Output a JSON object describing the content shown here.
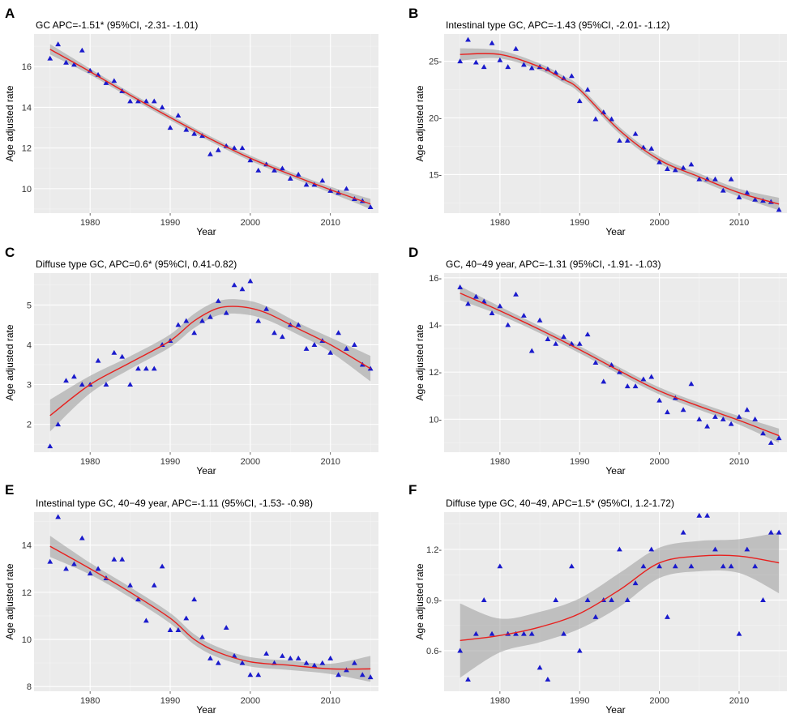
{
  "colors": {
    "panel_bg": "#ebebeb",
    "grid_major": "#ffffff",
    "grid_minor": "#f4f4f4",
    "point": "#1a1acc",
    "fit_line": "#e8201e",
    "ci_band": "#9a9a9a"
  },
  "chart_data": [
    {
      "letter": "A",
      "type": "scatter",
      "title": "GC APC=-1.51* (95%CI, -2.31- -1.01)",
      "xlabel": "Year",
      "ylabel": "Age adjusted rate",
      "xlim": [
        1973,
        2016
      ],
      "ylim": [
        8.8,
        17.6
      ],
      "xticks": [
        1980,
        1990,
        2000,
        2010
      ],
      "yticks": [
        10,
        12,
        14,
        16
      ],
      "ytick_labels": [
        "10",
        "12",
        "14",
        "16"
      ],
      "points": {
        "x": [
          1975,
          1976,
          1977,
          1978,
          1979,
          1980,
          1981,
          1982,
          1983,
          1984,
          1985,
          1986,
          1987,
          1988,
          1989,
          1990,
          1991,
          1992,
          1993,
          1994,
          1995,
          1996,
          1997,
          1998,
          1999,
          2000,
          2001,
          2002,
          2003,
          2004,
          2005,
          2006,
          2007,
          2008,
          2009,
          2010,
          2011,
          2012,
          2013,
          2014,
          2015
        ],
        "y": [
          16.4,
          17.1,
          16.2,
          16.1,
          16.8,
          15.8,
          15.6,
          15.2,
          15.3,
          14.8,
          14.3,
          14.3,
          14.3,
          14.3,
          14.0,
          13.0,
          13.6,
          12.9,
          12.7,
          12.6,
          11.7,
          11.9,
          12.1,
          12.0,
          12.0,
          11.4,
          10.9,
          11.2,
          10.9,
          11.0,
          10.5,
          10.7,
          10.2,
          10.2,
          10.4,
          9.9,
          9.8,
          10.0,
          9.5,
          9.4,
          9.1
        ]
      },
      "fit": {
        "x": [
          1975,
          1980,
          1985,
          1990,
          1995,
          2000,
          2005,
          2010,
          2015
        ],
        "y": [
          16.85,
          15.75,
          14.6,
          13.5,
          12.45,
          11.5,
          10.7,
          9.95,
          9.25
        ],
        "se": [
          0.25,
          0.15,
          0.13,
          0.13,
          0.13,
          0.13,
          0.13,
          0.15,
          0.25
        ]
      }
    },
    {
      "letter": "B",
      "type": "scatter",
      "title": "Intestinal type GC, APC=-1.43 (95%CI, -2.01- -1.12)",
      "xlabel": "Year",
      "ylabel": "Age adjusted rate",
      "xlim": [
        1973,
        2016
      ],
      "ylim": [
        11.6,
        27.4
      ],
      "xticks": [
        1980,
        1990,
        2000,
        2010
      ],
      "yticks": [
        15,
        20,
        25
      ],
      "ytick_labels": [
        "15-",
        "20-",
        "25-"
      ],
      "points": {
        "x": [
          1975,
          1976,
          1977,
          1978,
          1979,
          1980,
          1981,
          1982,
          1983,
          1984,
          1985,
          1986,
          1987,
          1988,
          1989,
          1990,
          1991,
          1992,
          1993,
          1994,
          1995,
          1996,
          1997,
          1998,
          1999,
          2000,
          2001,
          2002,
          2003,
          2004,
          2005,
          2006,
          2007,
          2008,
          2009,
          2010,
          2011,
          2012,
          2013,
          2014,
          2015
        ],
        "y": [
          25.0,
          26.9,
          24.9,
          24.5,
          26.6,
          25.1,
          24.5,
          26.1,
          24.7,
          24.4,
          24.5,
          24.3,
          24.0,
          23.5,
          23.7,
          21.5,
          22.5,
          19.9,
          20.5,
          19.9,
          18.0,
          18.0,
          18.6,
          17.4,
          17.3,
          16.1,
          15.5,
          15.4,
          15.6,
          15.9,
          14.6,
          14.6,
          14.6,
          13.6,
          14.6,
          13.0,
          13.4,
          12.8,
          12.7,
          12.6,
          11.9
        ]
      },
      "fit": {
        "x": [
          1975,
          1980,
          1985,
          1988,
          1990,
          1995,
          2000,
          2005,
          2010,
          2015
        ],
        "y": [
          25.6,
          25.6,
          24.5,
          23.4,
          22.5,
          18.9,
          16.3,
          14.8,
          13.4,
          12.4
        ],
        "se": [
          0.55,
          0.35,
          0.3,
          0.3,
          0.3,
          0.3,
          0.3,
          0.3,
          0.35,
          0.55
        ]
      }
    },
    {
      "letter": "C",
      "type": "scatter",
      "title": "Diffuse type GC, APC=0.6* (95%CI, 0.41-0.82)",
      "xlabel": "Year",
      "ylabel": "Age adjusted rate",
      "xlim": [
        1973,
        2016
      ],
      "ylim": [
        1.3,
        5.8
      ],
      "xticks": [
        1980,
        1990,
        2000,
        2010
      ],
      "yticks": [
        2,
        3,
        4,
        5
      ],
      "ytick_labels": [
        "2",
        "3",
        "4",
        "5"
      ],
      "points": {
        "x": [
          1975,
          1976,
          1977,
          1978,
          1979,
          1980,
          1981,
          1982,
          1983,
          1984,
          1985,
          1986,
          1987,
          1988,
          1989,
          1990,
          1991,
          1992,
          1993,
          1994,
          1995,
          1996,
          1997,
          1998,
          1999,
          2000,
          2001,
          2002,
          2003,
          2004,
          2005,
          2006,
          2007,
          2008,
          2009,
          2010,
          2011,
          2012,
          2013,
          2014,
          2015
        ],
        "y": [
          1.45,
          2.0,
          3.1,
          3.2,
          3.0,
          3.0,
          3.6,
          3.0,
          3.8,
          3.7,
          3.0,
          3.4,
          3.4,
          3.4,
          4.0,
          4.1,
          4.5,
          4.6,
          4.3,
          4.6,
          4.7,
          5.1,
          4.8,
          5.5,
          5.4,
          5.6,
          4.6,
          4.9,
          4.3,
          4.2,
          4.5,
          4.5,
          3.9,
          4.0,
          4.1,
          3.8,
          4.3,
          3.9,
          4.0,
          3.5,
          3.4
        ]
      },
      "fit": {
        "x": [
          1975,
          1980,
          1985,
          1990,
          1993,
          1996,
          1999,
          2002,
          2006,
          2010,
          2015
        ],
        "y": [
          2.22,
          3.0,
          3.55,
          4.1,
          4.6,
          4.92,
          4.95,
          4.8,
          4.4,
          4.0,
          3.4
        ],
        "se": [
          0.4,
          0.22,
          0.16,
          0.16,
          0.18,
          0.18,
          0.18,
          0.17,
          0.15,
          0.18,
          0.32
        ]
      }
    },
    {
      "letter": "D",
      "type": "scatter",
      "title": "GC, 40−49 year, APC=-1.31 (95%CI, -1.91- -1.03)",
      "xlabel": "Year",
      "ylabel": "Age adjusted rate",
      "xlim": [
        1973,
        2016
      ],
      "ylim": [
        8.6,
        16.2
      ],
      "xticks": [
        1980,
        1990,
        2000,
        2010
      ],
      "yticks": [
        10,
        12,
        14,
        16
      ],
      "ytick_labels": [
        "10-",
        "12-",
        "14-",
        "16-"
      ],
      "points": {
        "x": [
          1975,
          1976,
          1977,
          1978,
          1979,
          1980,
          1981,
          1982,
          1983,
          1984,
          1985,
          1986,
          1987,
          1988,
          1989,
          1990,
          1991,
          1992,
          1993,
          1994,
          1995,
          1996,
          1997,
          1998,
          1999,
          2000,
          2001,
          2002,
          2003,
          2004,
          2005,
          2006,
          2007,
          2008,
          2009,
          2010,
          2011,
          2012,
          2013,
          2014,
          2015
        ],
        "y": [
          15.6,
          14.9,
          15.2,
          15.0,
          14.5,
          14.8,
          14.0,
          15.3,
          14.4,
          12.9,
          14.2,
          13.4,
          13.2,
          13.5,
          13.2,
          13.2,
          13.6,
          12.4,
          11.6,
          12.3,
          12.0,
          11.4,
          11.4,
          11.7,
          11.8,
          10.8,
          10.3,
          10.9,
          10.4,
          11.5,
          10.0,
          9.7,
          10.1,
          10.0,
          9.8,
          10.1,
          10.4,
          10.0,
          9.4,
          9.0,
          9.2
        ]
      },
      "fit": {
        "x": [
          1975,
          1980,
          1985,
          1990,
          1995,
          2000,
          2005,
          2010,
          2015
        ],
        "y": [
          15.35,
          14.6,
          13.8,
          12.95,
          12.05,
          11.2,
          10.55,
          9.95,
          9.3
        ],
        "se": [
          0.3,
          0.18,
          0.15,
          0.15,
          0.15,
          0.15,
          0.15,
          0.18,
          0.3
        ]
      }
    },
    {
      "letter": "E",
      "type": "scatter",
      "title": "Intestinal type GC, 40−49 year, APC=-1.11 (95%CI, -1.53- -0.98)",
      "xlabel": "Year",
      "ylabel": "Age adjusted rate",
      "xlim": [
        1973,
        2016
      ],
      "ylim": [
        7.8,
        15.4
      ],
      "xticks": [
        1980,
        1990,
        2000,
        2010
      ],
      "yticks": [
        8,
        10,
        12,
        14
      ],
      "ytick_labels": [
        "8",
        "10",
        "12",
        "14"
      ],
      "points": {
        "x": [
          1975,
          1976,
          1977,
          1978,
          1979,
          1980,
          1981,
          1982,
          1983,
          1984,
          1985,
          1986,
          1987,
          1988,
          1989,
          1990,
          1991,
          1992,
          1993,
          1994,
          1995,
          1996,
          1997,
          1998,
          1999,
          2000,
          2001,
          2002,
          2003,
          2004,
          2005,
          2006,
          2007,
          2008,
          2009,
          2010,
          2011,
          2012,
          2013,
          2014,
          2015
        ],
        "y": [
          13.3,
          15.2,
          13.0,
          13.2,
          14.3,
          12.8,
          13.0,
          12.6,
          13.4,
          13.4,
          12.3,
          11.7,
          10.8,
          12.3,
          13.1,
          10.4,
          10.4,
          10.9,
          11.7,
          10.1,
          9.2,
          9.0,
          10.5,
          9.3,
          9.0,
          8.5,
          8.5,
          9.4,
          9.0,
          9.3,
          9.2,
          9.2,
          9.0,
          8.9,
          9.0,
          9.2,
          8.5,
          8.7,
          9.0,
          8.5,
          8.4
        ]
      },
      "fit": {
        "x": [
          1975,
          1980,
          1985,
          1990,
          1993,
          1996,
          2000,
          2005,
          2010,
          2015
        ],
        "y": [
          13.95,
          13.0,
          12.0,
          10.9,
          10.0,
          9.45,
          9.05,
          8.9,
          8.75,
          8.75
        ],
        "se": [
          0.45,
          0.25,
          0.22,
          0.22,
          0.22,
          0.22,
          0.2,
          0.2,
          0.22,
          0.55
        ]
      }
    },
    {
      "letter": "F",
      "type": "scatter",
      "title": "Diffuse type GC, 40−49, APC=1.5* (95%CI, 1.2-1.72)",
      "xlabel": "Year",
      "ylabel": "Age adjusted rate",
      "xlim": [
        1973,
        2016
      ],
      "ylim": [
        0.36,
        1.42
      ],
      "xticks": [
        1980,
        1990,
        2000,
        2010
      ],
      "yticks": [
        0.6,
        0.9,
        1.2
      ],
      "ytick_labels": [
        "0.6-",
        "0.9-",
        "1.2-"
      ],
      "points": {
        "x": [
          1975,
          1976,
          1977,
          1978,
          1979,
          1980,
          1981,
          1982,
          1983,
          1984,
          1985,
          1986,
          1987,
          1988,
          1989,
          1990,
          1991,
          1992,
          1993,
          1994,
          1995,
          1996,
          1997,
          1998,
          1999,
          2000,
          2001,
          2002,
          2003,
          2004,
          2005,
          2006,
          2007,
          2008,
          2009,
          2010,
          2011,
          2012,
          2013,
          2014,
          2015
        ],
        "y": [
          0.6,
          0.43,
          0.7,
          0.9,
          0.7,
          1.1,
          0.7,
          0.7,
          0.7,
          0.7,
          0.5,
          0.43,
          0.9,
          0.7,
          1.1,
          0.6,
          0.9,
          0.8,
          0.9,
          0.9,
          1.2,
          0.9,
          1.0,
          1.1,
          1.2,
          1.1,
          0.8,
          1.1,
          1.3,
          1.1,
          1.4,
          1.4,
          1.2,
          1.1,
          1.1,
          0.7,
          1.2,
          1.1,
          0.9,
          1.3,
          1.3
        ]
      },
      "fit": {
        "x": [
          1975,
          1980,
          1985,
          1990,
          1995,
          2000,
          2005,
          2010,
          2015
        ],
        "y": [
          0.66,
          0.69,
          0.74,
          0.82,
          0.96,
          1.12,
          1.16,
          1.16,
          1.12
        ],
        "se": [
          0.22,
          0.1,
          0.09,
          0.09,
          0.1,
          0.09,
          0.09,
          0.1,
          0.18
        ]
      }
    }
  ]
}
